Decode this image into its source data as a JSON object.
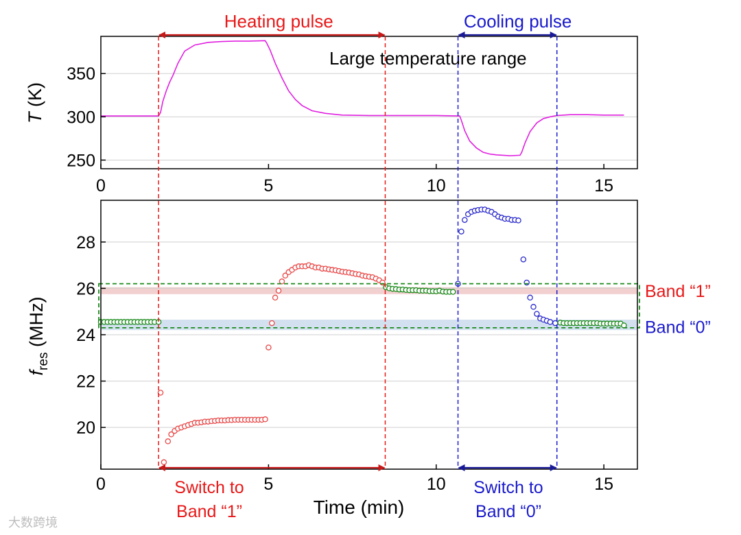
{
  "chart_data": [
    {
      "type": "line",
      "name": "temperature-panel",
      "ylabel_italic": "T",
      "ylabel_rest": " (K)",
      "xlim": [
        0,
        16
      ],
      "ylim": [
        240,
        393
      ],
      "xticks": [
        0,
        5,
        10,
        15
      ],
      "xtick_labels": [
        "0",
        "5",
        "10",
        "15"
      ],
      "yticks": [
        250,
        300,
        350
      ],
      "ytick_labels": [
        "250",
        "300",
        "350"
      ],
      "grid": true,
      "annotation": "Large temperature range",
      "series": [
        {
          "name": "T",
          "color": "#e020e0",
          "x": [
            0,
            1.72,
            1.78,
            1.85,
            1.95,
            2.05,
            2.15,
            2.3,
            2.5,
            2.8,
            3.2,
            3.6,
            4.0,
            4.4,
            4.9,
            4.95,
            5.05,
            5.2,
            5.4,
            5.6,
            5.8,
            6.0,
            6.3,
            6.7,
            7.2,
            8.0,
            9.0,
            10.0,
            10.7,
            10.75,
            10.85,
            11.0,
            11.2,
            11.4,
            11.6,
            11.8,
            12.0,
            12.2,
            12.5,
            12.55,
            12.65,
            12.8,
            13.0,
            13.2,
            13.4,
            13.6,
            14.0,
            14.5,
            15.0,
            15.6
          ],
          "y": [
            301,
            301,
            305,
            318,
            330,
            340,
            348,
            362,
            376,
            383,
            386,
            387,
            387.5,
            387.5,
            388,
            385,
            377,
            362,
            345,
            330,
            320,
            313,
            307,
            304,
            302,
            301.5,
            301.5,
            301.5,
            301,
            296,
            284,
            272,
            264,
            259,
            257,
            256,
            255.5,
            255,
            255.5,
            259,
            270,
            283,
            293,
            298,
            300,
            301.5,
            302.5,
            302.5,
            302,
            302
          ]
        }
      ]
    },
    {
      "type": "scatter",
      "name": "resonance-panel",
      "ylabel_symbol": "f",
      "ylabel_sub": "res",
      "ylabel_rest": " (MHz)",
      "xlabel": "Time (min)",
      "xlim": [
        0,
        16
      ],
      "ylim": [
        18.2,
        29.8
      ],
      "xticks": [
        0,
        5,
        10,
        15
      ],
      "xtick_labels": [
        "0",
        "5",
        "10",
        "15"
      ],
      "yticks": [
        20,
        22,
        24,
        26,
        28
      ],
      "ytick_labels": [
        "20",
        "22",
        "24",
        "26",
        "28"
      ],
      "grid": true,
      "bands": [
        {
          "label": "Band “1”",
          "y0": 25.75,
          "y1": 26.05,
          "color": "#f2d0d0",
          "label_color": "#e81818"
        },
        {
          "label": "Band “0”",
          "y0": 24.2,
          "y1": 24.65,
          "color": "#d3e0f0",
          "label_color": "#1a1acc"
        }
      ],
      "dashed_box_y": [
        24.3,
        26.2
      ],
      "series": [
        {
          "name": "hold-before",
          "color": "#1a8a1a",
          "x": [
            0,
            0.1,
            0.2,
            0.3,
            0.4,
            0.5,
            0.6,
            0.7,
            0.8,
            0.9,
            1.0,
            1.1,
            1.2,
            1.3,
            1.4,
            1.5,
            1.6,
            1.72
          ],
          "y": [
            24.55,
            24.55,
            24.55,
            24.55,
            24.55,
            24.55,
            24.55,
            24.55,
            24.55,
            24.55,
            24.55,
            24.55,
            24.55,
            24.55,
            24.55,
            24.55,
            24.55,
            24.55
          ]
        },
        {
          "name": "heating",
          "color": "#e84848",
          "x": [
            1.78,
            1.88,
            2.0,
            2.1,
            2.2,
            2.3,
            2.4,
            2.5,
            2.6,
            2.7,
            2.8,
            2.9,
            3.0,
            3.1,
            3.2,
            3.3,
            3.4,
            3.5,
            3.6,
            3.7,
            3.8,
            3.9,
            4.0,
            4.1,
            4.2,
            4.3,
            4.4,
            4.5,
            4.6,
            4.7,
            4.8,
            4.9,
            5.0,
            5.1,
            5.2,
            5.3,
            5.4,
            5.5,
            5.6,
            5.7,
            5.8,
            5.9,
            6.0,
            6.1,
            6.2,
            6.3,
            6.4,
            6.5,
            6.6,
            6.7,
            6.8,
            6.9,
            7.0,
            7.1,
            7.2,
            7.3,
            7.4,
            7.5,
            7.6,
            7.7,
            7.8,
            7.9,
            8.0,
            8.1,
            8.2,
            8.3,
            8.4
          ],
          "y": [
            21.5,
            18.5,
            19.4,
            19.7,
            19.85,
            19.95,
            20.0,
            20.05,
            20.1,
            20.15,
            20.2,
            20.2,
            20.22,
            20.25,
            20.25,
            20.27,
            20.28,
            20.3,
            20.3,
            20.3,
            20.32,
            20.32,
            20.33,
            20.33,
            20.33,
            20.33,
            20.33,
            20.33,
            20.33,
            20.33,
            20.33,
            20.35,
            23.45,
            24.5,
            25.6,
            25.9,
            26.3,
            26.55,
            26.7,
            26.8,
            26.9,
            26.95,
            26.95,
            26.95,
            27.0,
            26.95,
            26.9,
            26.9,
            26.85,
            26.85,
            26.82,
            26.8,
            26.78,
            26.75,
            26.72,
            26.7,
            26.68,
            26.65,
            26.62,
            26.6,
            26.55,
            26.52,
            26.5,
            26.48,
            26.42,
            26.35,
            26.25
          ]
        },
        {
          "name": "hold-middle",
          "color": "#1a8a1a",
          "x": [
            8.5,
            8.6,
            8.7,
            8.8,
            8.9,
            9.0,
            9.1,
            9.2,
            9.3,
            9.4,
            9.5,
            9.6,
            9.7,
            9.8,
            9.9,
            10.0,
            10.1,
            10.2,
            10.3,
            10.4,
            10.5
          ],
          "y": [
            26.05,
            26.0,
            25.98,
            25.97,
            25.95,
            25.95,
            25.93,
            25.92,
            25.92,
            25.92,
            25.9,
            25.9,
            25.9,
            25.88,
            25.88,
            25.87,
            25.9,
            25.86,
            25.85,
            25.85,
            25.85
          ]
        },
        {
          "name": "cooling",
          "color": "#2a2acc",
          "x": [
            10.65,
            10.75,
            10.85,
            10.95,
            11.05,
            11.15,
            11.25,
            11.35,
            11.45,
            11.55,
            11.65,
            11.75,
            11.85,
            11.95,
            12.05,
            12.15,
            12.25,
            12.35,
            12.45,
            12.6,
            12.7,
            12.8,
            12.9,
            13.0,
            13.1,
            13.2,
            13.3,
            13.4,
            13.55
          ],
          "y": [
            26.2,
            28.45,
            28.95,
            29.2,
            29.3,
            29.35,
            29.38,
            29.4,
            29.4,
            29.35,
            29.3,
            29.2,
            29.1,
            29.05,
            29.0,
            29.0,
            28.95,
            28.95,
            28.93,
            27.25,
            26.25,
            25.6,
            25.2,
            24.9,
            24.7,
            24.65,
            24.6,
            24.55,
            24.5
          ]
        },
        {
          "name": "hold-after",
          "color": "#1a8a1a",
          "x": [
            13.7,
            13.8,
            13.9,
            14.0,
            14.1,
            14.2,
            14.3,
            14.4,
            14.5,
            14.6,
            14.7,
            14.8,
            14.9,
            15.0,
            15.1,
            15.2,
            15.3,
            15.4,
            15.5,
            15.6
          ],
          "y": [
            24.52,
            24.5,
            24.5,
            24.5,
            24.5,
            24.5,
            24.5,
            24.5,
            24.5,
            24.5,
            24.5,
            24.5,
            24.48,
            24.48,
            24.48,
            24.48,
            24.48,
            24.48,
            24.48,
            24.4
          ]
        }
      ]
    }
  ],
  "pulse_lines": {
    "heating_start": 1.72,
    "heating_end": 8.48,
    "cooling_start": 10.65,
    "cooling_end": 13.6
  },
  "annotations": {
    "heating_pulse": "Heating pulse",
    "cooling_pulse": "Cooling pulse",
    "switch_to_1_line1": "Switch to",
    "switch_to_1_line2": "Band “1”",
    "switch_to_0_line1": "Switch to",
    "switch_to_0_line2": "Band “0”"
  },
  "colors": {
    "heating": "#e81818",
    "heating_arrow": "#c81818",
    "cooling": "#1a1acc",
    "cooling_arrow": "#1a1a99",
    "hold": "#1a8a1a"
  },
  "watermark": "大数跨境"
}
